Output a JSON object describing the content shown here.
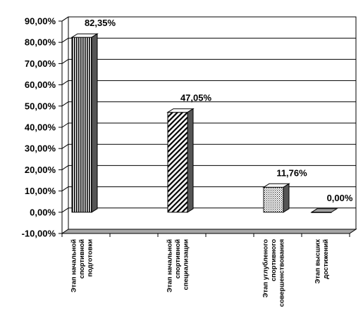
{
  "chart_data": {
    "type": "bar",
    "title": "",
    "xlabel": "",
    "ylabel": "",
    "ylim": [
      -10,
      90
    ],
    "ytick_step": 10,
    "ytick_labels": [
      "-10,00%",
      "0,00%",
      "10,00%",
      "20,00%",
      "30,00%",
      "40,00%",
      "50,00%",
      "60,00%",
      "70,00%",
      "80,00%",
      "90,00%"
    ],
    "grid": true,
    "legend": "none",
    "three_d": true,
    "categories": [
      [
        "Этап начальной",
        "спортивной",
        "подготовки"
      ],
      [],
      [
        "Этап начальной",
        "спортивной",
        "специализации"
      ],
      [],
      [
        "Этап углубленого",
        "спортивного",
        "совершенствования"
      ],
      [
        "Этап высших",
        "достижений"
      ]
    ],
    "values": [
      82.35,
      null,
      47.05,
      null,
      11.76,
      0.0
    ],
    "data_labels": [
      "82,35%",
      "",
      "47,05%",
      "",
      "11,76%",
      "0,00%"
    ],
    "bar_patterns": [
      "vertical-lines",
      "",
      "diagonal-hatch",
      "",
      "dots",
      "solid-gray"
    ],
    "colors": {
      "bar_stroke": "#000000",
      "floor": "#a6a6a6",
      "grid": "#000000"
    }
  }
}
